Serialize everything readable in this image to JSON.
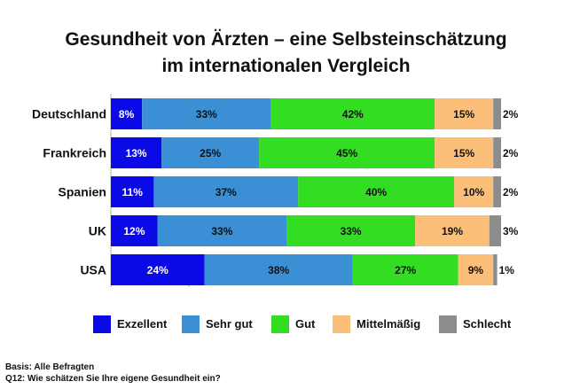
{
  "title_line1": "Gesundheit von Ärzten – eine Selbsteinschätzung",
  "title_line2": "im internationalen Vergleich",
  "chart_data": {
    "type": "bar",
    "orientation": "horizontal",
    "stacked": true,
    "percent": true,
    "categories": [
      "Deutschland",
      "Frankreich",
      "Spanien",
      "UK",
      "USA"
    ],
    "series": [
      {
        "name": "Exzellent",
        "color": "#0a0ae6",
        "values": [
          8,
          13,
          11,
          12,
          24
        ]
      },
      {
        "name": "Sehr gut",
        "color": "#3b8fd4",
        "values": [
          33,
          25,
          37,
          33,
          38
        ]
      },
      {
        "name": "Gut",
        "color": "#33dd22",
        "values": [
          42,
          45,
          40,
          33,
          27
        ]
      },
      {
        "name": "Mittelmäßig",
        "color": "#fbbf7a",
        "values": [
          15,
          15,
          10,
          19,
          9
        ]
      },
      {
        "name": "Schlecht",
        "color": "#8c8c8c",
        "values": [
          2,
          2,
          2,
          3,
          1
        ]
      }
    ],
    "value_labels": [
      [
        "8%",
        "33%",
        "42%",
        "15%",
        "2%"
      ],
      [
        "13%",
        "25%",
        "45%",
        "15%",
        "2%"
      ],
      [
        "11%",
        "37%",
        "40%",
        "10%",
        "2%"
      ],
      [
        "12%",
        "33%",
        "33%",
        "19%",
        "3%"
      ],
      [
        "24%",
        "38%",
        "27%",
        "9%",
        "1%"
      ]
    ],
    "xlim": [
      0,
      100
    ],
    "legend_position": "bottom",
    "grid": false
  },
  "footer": {
    "basis": "Basis: Alle Befragten",
    "question": "Q12: Wie schätzen Sie Ihre eigene Gesundheit ein?"
  }
}
